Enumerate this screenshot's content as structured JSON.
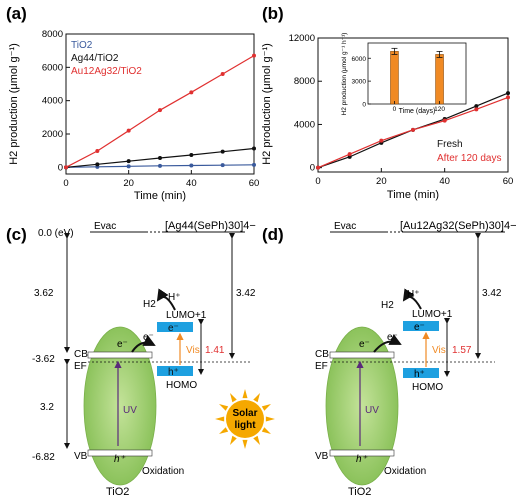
{
  "panels": {
    "a": "(a)",
    "b": "(b)",
    "c": "(c)",
    "d": "(d)"
  },
  "chart_data": [
    {
      "type": "line",
      "panel": "(a)",
      "xlabel": "Time (min)",
      "ylabel": "H2 production (μmol g⁻¹)",
      "xlim": [
        0,
        60
      ],
      "ylim": [
        -400,
        8000
      ],
      "xticks": [
        "0",
        "20",
        "40",
        "60"
      ],
      "yticks": [
        "0",
        "2000",
        "4000",
        "6000",
        "8000"
      ],
      "legend_position": "top-left",
      "series": [
        {
          "name": "TiO2",
          "color": "#3a5a9c",
          "x": [
            0,
            10,
            20,
            30,
            40,
            50,
            60
          ],
          "y": [
            0,
            30,
            60,
            90,
            110,
            130,
            150
          ]
        },
        {
          "name": "Ag44/TiO2",
          "color": "#111111",
          "x": [
            0,
            10,
            20,
            30,
            40,
            50,
            60
          ],
          "y": [
            0,
            180,
            370,
            560,
            740,
            940,
            1130
          ]
        },
        {
          "name": "Au12Ag32/TiO2",
          "color": "#e03030",
          "x": [
            0,
            10,
            20,
            30,
            40,
            50,
            60
          ],
          "y": [
            0,
            980,
            2200,
            3430,
            4500,
            5600,
            6700
          ]
        }
      ]
    },
    {
      "type": "line",
      "panel": "(b)",
      "xlabel": "Time (min)",
      "ylabel": "H2 production (μmol g⁻¹)",
      "xlim": [
        0,
        60
      ],
      "ylim": [
        -400,
        12000
      ],
      "xticks": [
        "0",
        "20",
        "40",
        "60"
      ],
      "yticks": [
        "0",
        "4000",
        "8000",
        "12000"
      ],
      "legend_position": "bottom-right",
      "series": [
        {
          "name": "Fresh",
          "color": "#111111",
          "x": [
            0,
            10,
            20,
            30,
            40,
            50,
            60
          ],
          "y": [
            0,
            1000,
            2300,
            3500,
            4500,
            5700,
            6900
          ]
        },
        {
          "name": "After 120 days",
          "color": "#e03030",
          "x": [
            0,
            10,
            20,
            30,
            40,
            50,
            60
          ],
          "y": [
            0,
            1250,
            2500,
            3500,
            4350,
            5400,
            6500
          ]
        }
      ],
      "inset": {
        "type": "bar",
        "xlabel": "Time (days)",
        "ylabel": "H2 production (μmol g⁻¹ h⁻¹)",
        "categories": [
          "0",
          "120"
        ],
        "values": [
          6900,
          6500
        ],
        "errors": [
          400,
          400
        ],
        "ylim": [
          0,
          8000
        ],
        "yticks": [
          "0",
          "3000",
          "6000"
        ],
        "bar_color": "#f08a24"
      }
    }
  ],
  "diagram_c": {
    "evac": "Evac",
    "cluster": "[Ag44(SePh)30]4−",
    "e00": "0.0 (eV)",
    "gap_vac_cb": "3.62",
    "cb_level": "-3.62",
    "gap_tio2": "3.2",
    "vb_level": "-6.82",
    "gap_cluster": "3.42",
    "homo_lumo_gap": "1.41",
    "cb": "CB",
    "ef": "EF",
    "vb": "VB",
    "uv": "UV",
    "vis": "Vis",
    "lumo": "LUMO+1",
    "homo": "HOMO",
    "h2": "H2",
    "hplus": "H⁺",
    "electron": "e⁻",
    "hole": "h⁺",
    "oxidation": "Oxidation",
    "tio2": "TiO2"
  },
  "diagram_d": {
    "evac": "Evac",
    "cluster": "[Au12Ag32(SePh)30]4−",
    "gap_cluster": "3.42",
    "homo_lumo_gap": "1.57",
    "cb": "CB",
    "ef": "EF",
    "vb": "VB",
    "uv": "UV",
    "vis": "Vis",
    "lumo": "LUMO+1",
    "homo": "HOMO",
    "h2": "H2",
    "hplus": "H⁺",
    "electron": "e⁻",
    "hole": "h⁺",
    "oxidation": "Oxidation",
    "tio2": "TiO2"
  },
  "sun": {
    "line1": "Solar",
    "line2": "light"
  },
  "colors": {
    "accent_red": "#e03030",
    "blue_level": "#1ea0e0",
    "green_ellipse": "#9ccc6a",
    "orange": "#f08a24",
    "sun": "#f5a800"
  }
}
